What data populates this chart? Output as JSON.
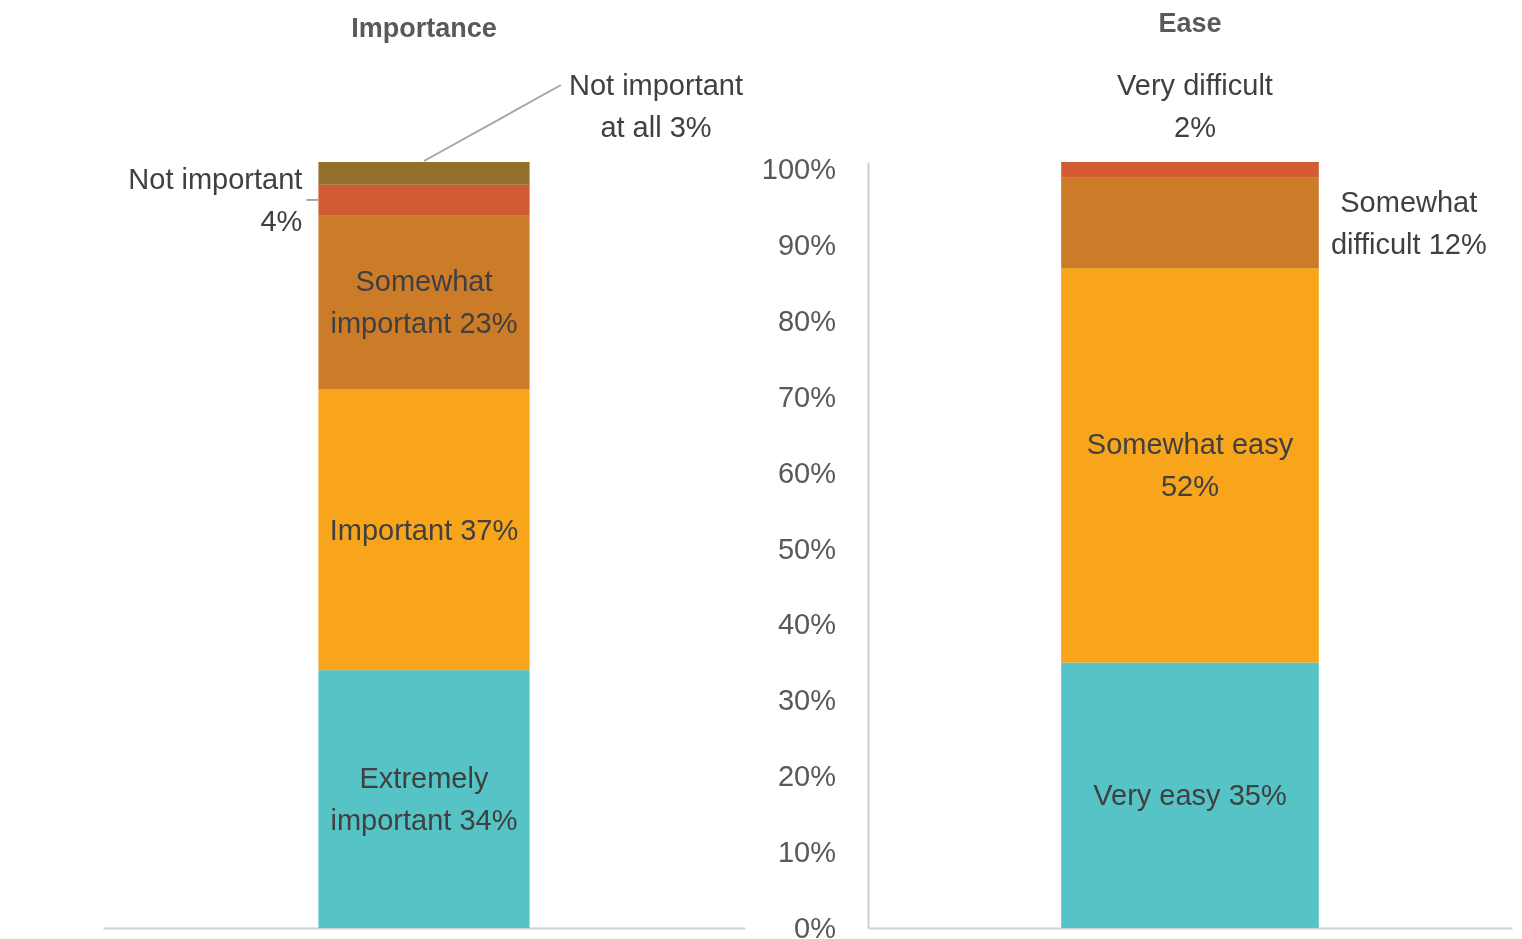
{
  "chart_data": [
    {
      "type": "bar",
      "title": "Importance",
      "stacked": true,
      "categories": [
        null
      ],
      "ylim": [
        0,
        101
      ],
      "series": [
        {
          "name": "Extremely important",
          "color": "#56c3c6",
          "values": [
            34
          ],
          "value_labels": [
            "34%"
          ]
        },
        {
          "name": "Important",
          "color": "#f8a51c",
          "values": [
            37
          ],
          "value_labels": [
            "37%"
          ]
        },
        {
          "name": "Somewhat important",
          "color": "#cc7b29",
          "values": [
            23
          ],
          "value_labels": [
            "23%"
          ]
        },
        {
          "name": "Not important",
          "color": "#d35b33",
          "values": [
            4
          ],
          "value_labels": [
            "4%"
          ]
        },
        {
          "name": "Not important at all",
          "color": "#94702c",
          "values": [
            3
          ],
          "value_labels": [
            "3%"
          ]
        }
      ]
    },
    {
      "type": "bar",
      "title": "Ease",
      "stacked": true,
      "categories": [
        null
      ],
      "ylim": [
        0,
        101
      ],
      "yticks": [
        {
          "value": 0,
          "label": "0%"
        },
        {
          "value": 10,
          "label": "10%"
        },
        {
          "value": 20,
          "label": "20%"
        },
        {
          "value": 30,
          "label": "30%"
        },
        {
          "value": 40,
          "label": "40%"
        },
        {
          "value": 50,
          "label": "50%"
        },
        {
          "value": 60,
          "label": "60%"
        },
        {
          "value": 70,
          "label": "70%"
        },
        {
          "value": 80,
          "label": "80%"
        },
        {
          "value": 90,
          "label": "90%"
        },
        {
          "value": 100,
          "label": "100%"
        }
      ],
      "series": [
        {
          "name": "Very easy",
          "color": "#56c3c6",
          "values": [
            35
          ],
          "value_labels": [
            "35%"
          ]
        },
        {
          "name": "Somewhat easy",
          "color": "#f8a51c",
          "values": [
            52
          ],
          "value_labels": [
            "52%"
          ]
        },
        {
          "name": "Somewhat difficult",
          "color": "#cc7b29",
          "values": [
            12
          ],
          "value_labels": [
            "12%"
          ]
        },
        {
          "name": "Very difficult",
          "color": "#d35b33",
          "values": [
            2
          ],
          "value_labels": [
            "2%"
          ]
        }
      ]
    }
  ]
}
